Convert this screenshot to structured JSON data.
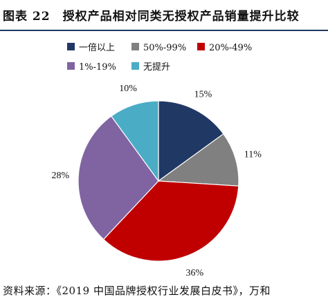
{
  "figure": {
    "title": "图表 22　授权产品相对同类无授权产品销量提升比较",
    "source": "资料来源：《2019 中国品牌授权行业发展白皮书》，万和"
  },
  "chart_data": {
    "type": "pie",
    "title": "",
    "legend_position": "top",
    "slices": [
      {
        "label": "一倍以上",
        "value": 15,
        "display": "15%",
        "color": "#203864"
      },
      {
        "label": "50%-99%",
        "value": 11,
        "display": "11%",
        "color": "#808080"
      },
      {
        "label": "20%-49%",
        "value": 36,
        "display": "36%",
        "color": "#c00000"
      },
      {
        "label": "1%-19%",
        "value": 28,
        "display": "28%",
        "color": "#8064a2"
      },
      {
        "label": "无提升",
        "value": 10,
        "display": "10%",
        "color": "#4bacc6"
      }
    ]
  }
}
